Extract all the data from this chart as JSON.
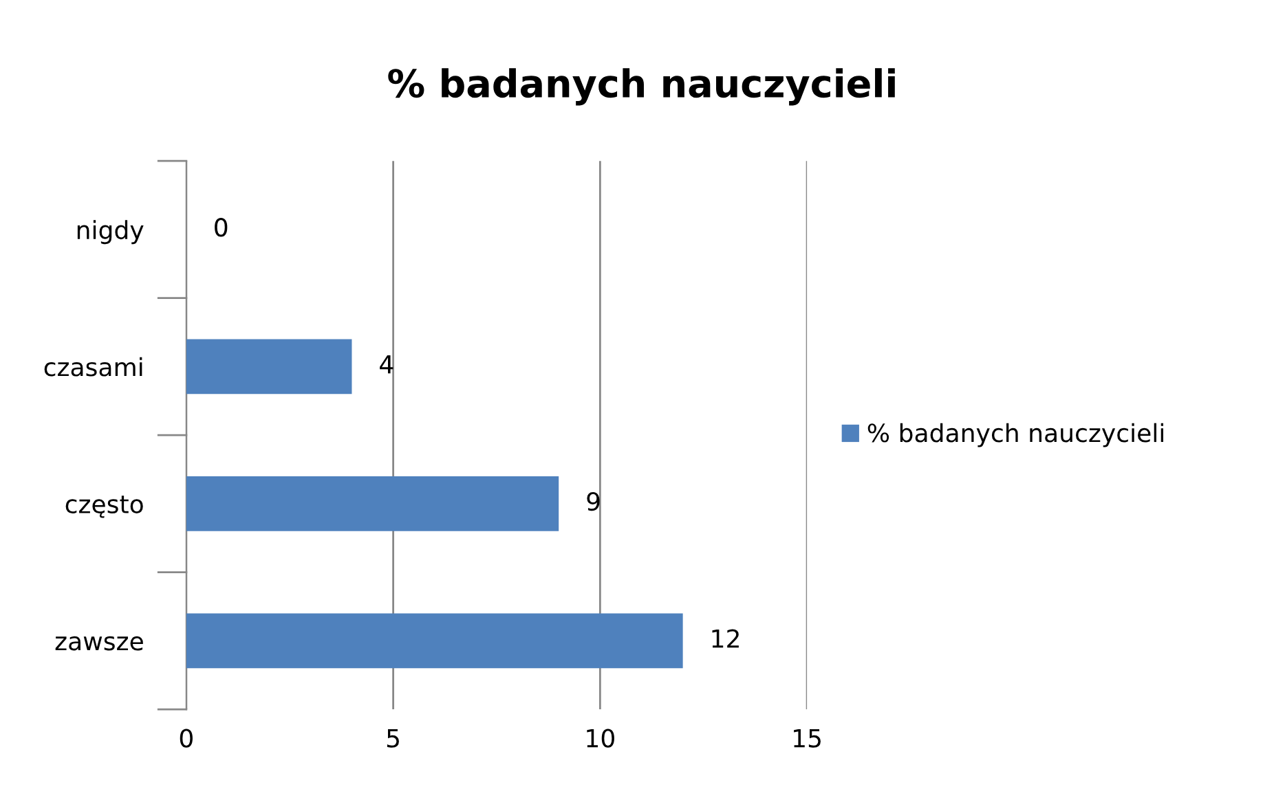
{
  "chart_data": {
    "type": "bar",
    "orientation": "horizontal",
    "title": "% badanych nauczycieli",
    "categories": [
      "nigdy",
      "czasami",
      "często",
      "zawsze"
    ],
    "series": [
      {
        "name": "% badanych nauczycieli",
        "color": "#4f81bd",
        "values": [
          0,
          4,
          9,
          12
        ]
      }
    ],
    "xlim": [
      0,
      15
    ],
    "xticks": [
      0,
      5,
      10,
      15
    ],
    "grid": "x",
    "legend": "right",
    "data_labels": true
  }
}
